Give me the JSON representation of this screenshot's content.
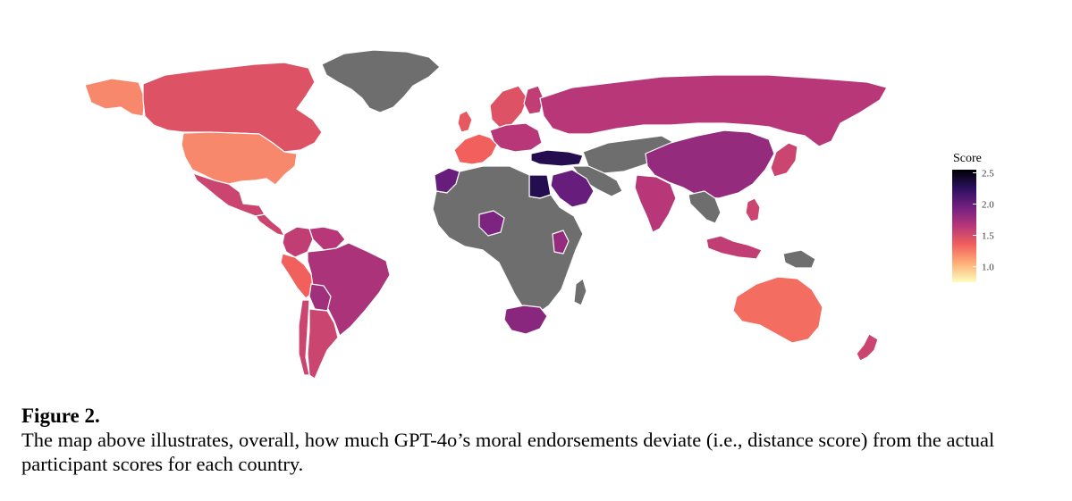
{
  "legend": {
    "title": "Score",
    "min": 0.75,
    "max": 2.55,
    "ticks": [
      "2.5",
      "2.0",
      "1.5",
      "1.0"
    ],
    "tick_values": [
      2.5,
      2.0,
      1.5,
      1.0
    ],
    "gradient": [
      "#000004",
      "#2c115f",
      "#721f81",
      "#b73779",
      "#f1605d",
      "#feb078",
      "#fcfdbf"
    ]
  },
  "colors": {
    "no_data": "#6e6e6e",
    "border": "#ffffff"
  },
  "countries": [
    {
      "name": "Greenland",
      "score": null
    },
    {
      "name": "Canada",
      "score": 1.45
    },
    {
      "name": "Alaska",
      "score": 1.2
    },
    {
      "name": "United States",
      "score": 1.2
    },
    {
      "name": "Mexico",
      "score": 1.55
    },
    {
      "name": "Central America",
      "score": 1.55
    },
    {
      "name": "Colombia",
      "score": 1.6
    },
    {
      "name": "Venezuela",
      "score": 1.65
    },
    {
      "name": "Peru",
      "score": 1.35
    },
    {
      "name": "Brazil",
      "score": 1.7
    },
    {
      "name": "Bolivia",
      "score": 1.75
    },
    {
      "name": "Chile",
      "score": 1.55
    },
    {
      "name": "Argentina",
      "score": 1.55
    },
    {
      "name": "Russia",
      "score": 1.65
    },
    {
      "name": "Scandinavia",
      "score": 1.45
    },
    {
      "name": "Finland",
      "score": 1.6
    },
    {
      "name": "United Kingdom",
      "score": 1.4
    },
    {
      "name": "Western Europe",
      "score": 1.35
    },
    {
      "name": "Central Europe",
      "score": 1.65
    },
    {
      "name": "Turkey",
      "score": 2.3
    },
    {
      "name": "Central Asia",
      "score": null
    },
    {
      "name": "China",
      "score": 1.8
    },
    {
      "name": "Japan",
      "score": 1.55
    },
    {
      "name": "India",
      "score": 1.65
    },
    {
      "name": "Saudi Arabia",
      "score": 2.0
    },
    {
      "name": "Egypt",
      "score": 2.3
    },
    {
      "name": "Morocco",
      "score": 2.0
    },
    {
      "name": "Nigeria",
      "score": 1.9
    },
    {
      "name": "Kenya",
      "score": 1.8
    },
    {
      "name": "South Africa",
      "score": 1.85
    },
    {
      "name": "Africa (other)",
      "score": null
    },
    {
      "name": "Indonesia",
      "score": 1.6
    },
    {
      "name": "Philippines",
      "score": 1.55
    },
    {
      "name": "Australia",
      "score": 1.3
    },
    {
      "name": "New Zealand",
      "score": 1.55
    },
    {
      "name": "Southeast Asia",
      "score": null
    }
  ],
  "caption": {
    "label": "Figure 2.",
    "text": "The map above illustrates, overall, how much GPT-4o’s moral endorsements deviate (i.e., distance score) from the actual participant scores for each country."
  }
}
